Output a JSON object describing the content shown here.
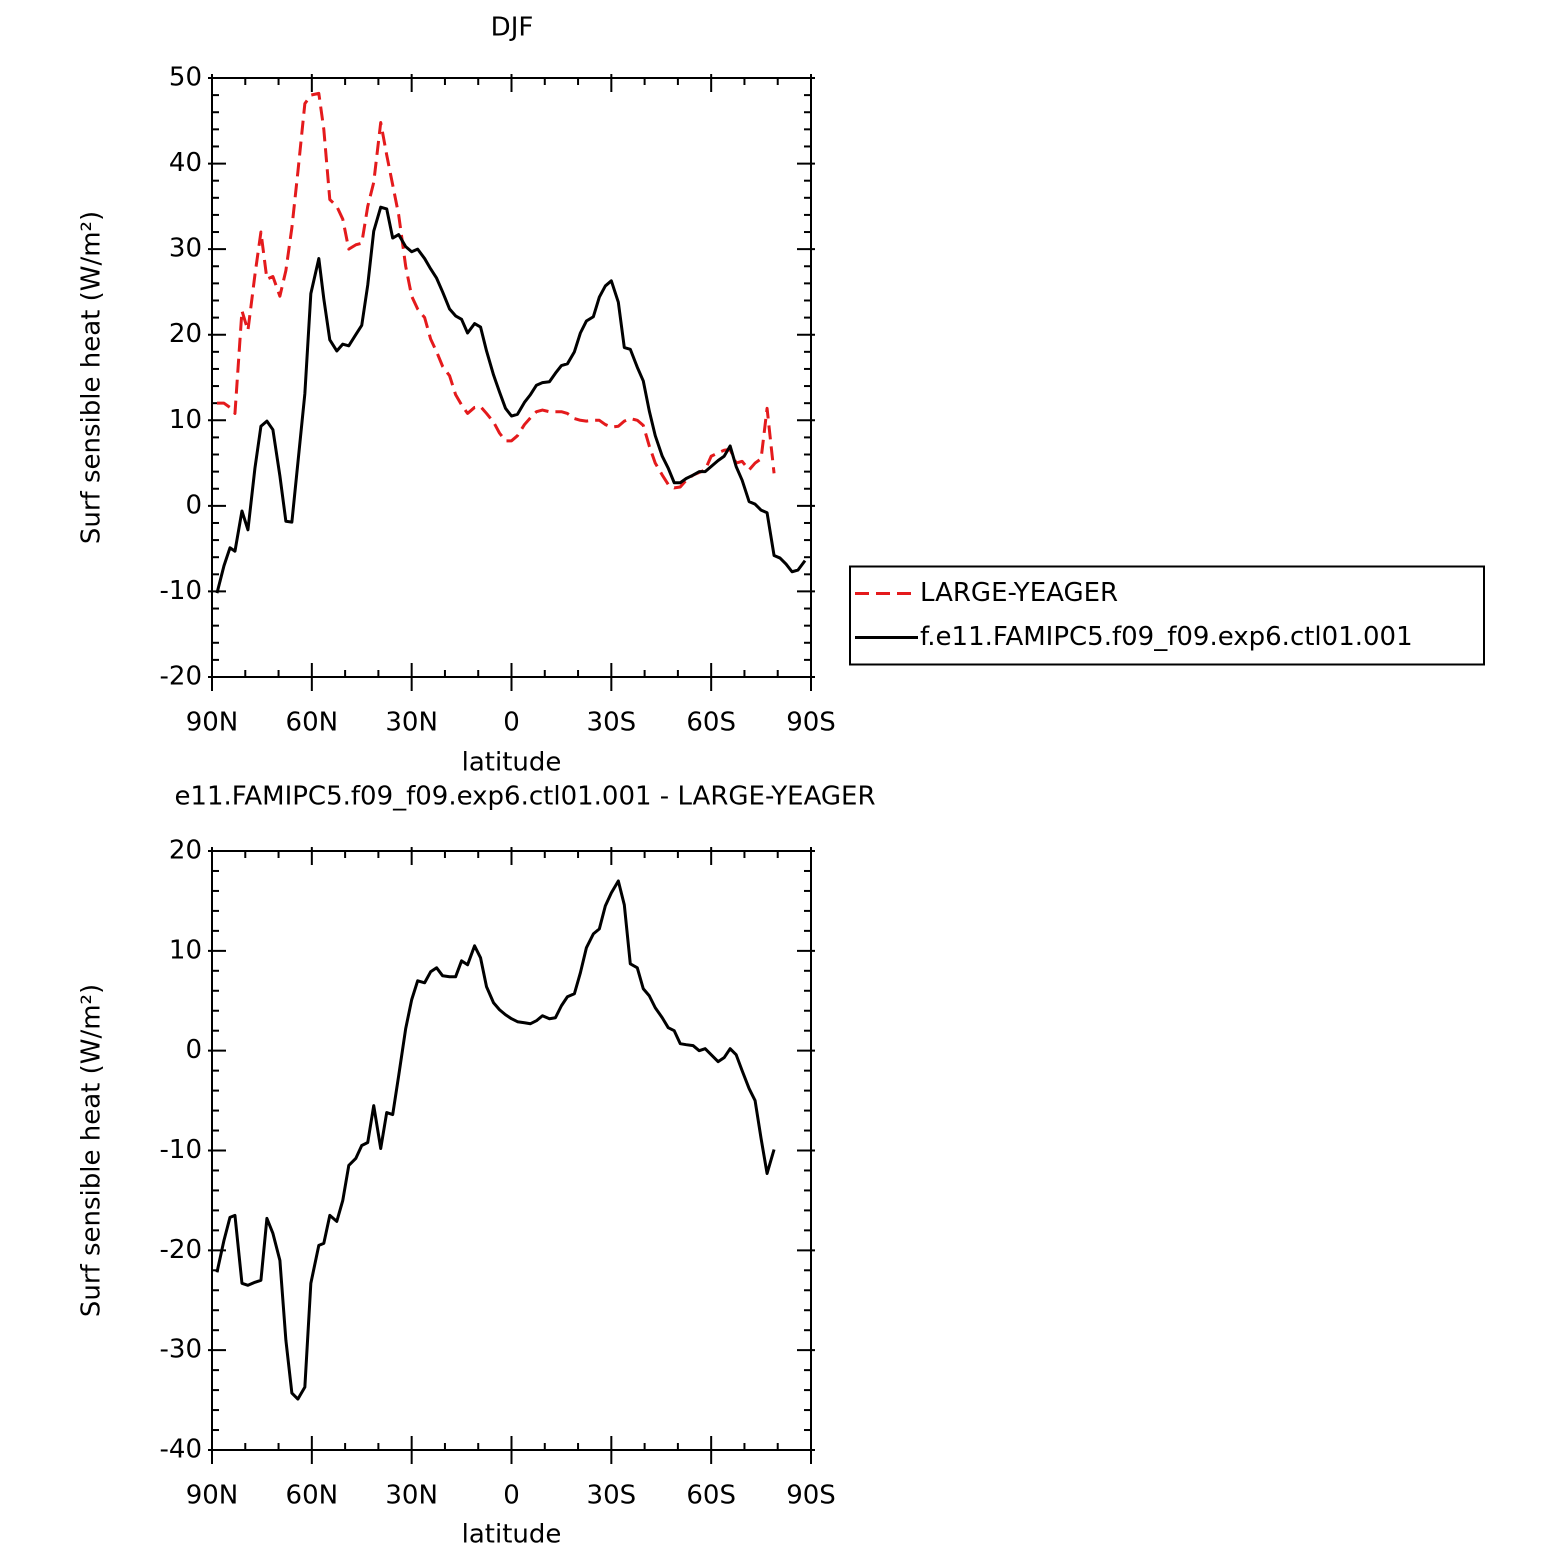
{
  "chart_data": [
    {
      "type": "line",
      "title": "DJF",
      "xlabel": "latitude",
      "ylabel": "Surf sensible heat (W/m²)",
      "xlim": [
        90,
        -90
      ],
      "xticks": [
        {
          "value": 90,
          "label": "90N"
        },
        {
          "value": 60,
          "label": "60N"
        },
        {
          "value": 30,
          "label": "30N"
        },
        0,
        {
          "value": -30,
          "label": "30S"
        },
        {
          "value": -60,
          "label": "60S"
        },
        {
          "value": -90,
          "label": "90S"
        }
      ],
      "ylim": [
        -20,
        50
      ],
      "yticks": [
        -20,
        -10,
        0,
        10,
        20,
        30,
        40,
        50
      ],
      "legend": "right",
      "x": [
        88.5,
        86.4,
        84.6,
        83.1,
        81,
        79.2,
        77.1,
        75.3,
        73.5,
        71.7,
        69.6,
        67.8,
        66,
        64.2,
        62.1,
        60.3,
        57.9,
        56.4,
        54.6,
        52.5,
        50.7,
        48.9,
        46.8,
        45,
        43.2,
        41.4,
        39.3,
        37.5,
        35.7,
        33.9,
        31.8,
        30,
        28.2,
        26.1,
        24.3,
        22.5,
        20.7,
        18.6,
        16.8,
        15,
        13.2,
        11.1,
        9.3,
        7.5,
        5.4,
        3.6,
        1.8,
        0,
        -1.8,
        -3.9,
        -5.7,
        -7.5,
        -9.3,
        -11.4,
        -13.2,
        -15,
        -16.8,
        -18.9,
        -20.7,
        -22.5,
        -24.6,
        -26.4,
        -28.2,
        -30,
        -32.1,
        -33.9,
        -35.7,
        -37.8,
        -39.6,
        -41.4,
        -43.2,
        -45.3,
        -47.1,
        -48.9,
        -50.7,
        -52.5,
        -54.6,
        -56.4,
        -58.2,
        -60,
        -62.1,
        -63.9,
        -65.7,
        -67.5,
        -69.3,
        -71.4,
        -73.2,
        -75,
        -76.8,
        -78.9,
        -80.7,
        -82.5,
        -84.3,
        -86.1,
        -88.2
      ],
      "series": [
        {
          "name": "LARGE-YEAGER",
          "color": "#e41a1c",
          "dashed": true,
          "values": [
            12,
            12,
            11.5,
            10.8,
            22.8,
            20.5,
            27,
            32,
            26.5,
            26.8,
            24.5,
            27.5,
            32.5,
            39,
            47,
            48,
            48.2,
            44,
            35.8,
            35,
            33.5,
            30,
            30.5,
            30.7,
            35,
            37.8,
            44.8,
            41,
            37.5,
            34,
            28,
            24.5,
            23,
            22,
            19.5,
            18,
            16.3,
            15.2,
            13,
            11.8,
            10.8,
            11.5,
            11.6,
            10.8,
            9.8,
            8.5,
            7.6,
            7.6,
            8.2,
            9.5,
            10.3,
            11,
            11.2,
            11,
            11,
            11,
            10.8,
            10.2,
            10,
            9.9,
            10,
            10,
            9.5,
            9.2,
            9.3,
            9.9,
            10.2,
            10,
            9.4,
            7,
            5,
            3.6,
            2.5,
            2.1,
            2.2,
            3,
            3.6,
            3.9,
            4.2,
            5.8,
            6.2,
            6.5,
            6.6,
            5,
            5.2,
            4.2,
            5,
            5.5,
            11.4,
            3.8,
            null,
            null,
            null,
            null,
            null
          ]
        },
        {
          "name": "f.e11.FAMIPC5.f09_f09.exp6.ctl01.001",
          "color": "#000000",
          "dashed": false,
          "values": [
            -10.2,
            -7,
            -4.9,
            -5.3,
            -0.6,
            -2.8,
            4.4,
            9.3,
            9.9,
            8.9,
            3.5,
            -1.8,
            -1.9,
            5,
            13.1,
            24.8,
            28.9,
            24.2,
            19.4,
            18.1,
            18.9,
            18.7,
            20,
            21.1,
            25.8,
            32.1,
            34.9,
            34.7,
            31.3,
            31.7,
            30.3,
            29.7,
            30,
            28.9,
            27.7,
            26.6,
            25,
            23,
            22.2,
            21.8,
            20.2,
            21.3,
            20.9,
            18.1,
            15.3,
            13.3,
            11.4,
            10.5,
            10.7,
            12.1,
            13,
            14.1,
            14.4,
            14.5,
            15.5,
            16.4,
            16.6,
            18,
            20.2,
            21.6,
            22.1,
            24.4,
            25.7,
            26.3,
            23.8,
            18.5,
            18.3,
            16.2,
            14.6,
            11.1,
            8.2,
            5.8,
            4.4,
            2.7,
            2.7,
            3.2,
            3.6,
            4,
            4,
            4.6,
            5.3,
            5.8,
            7,
            4.6,
            3,
            0.5,
            0.2,
            -0.5,
            -0.8,
            -5.8,
            -6.1,
            -6.8,
            -7.7,
            -7.5,
            -6.4
          ]
        }
      ]
    },
    {
      "type": "line",
      "title": "e11.FAMIPC5.f09_f09.exp6.ctl01.001 - LARGE-YEAGER",
      "xlabel": "latitude",
      "ylabel": "Surf sensible heat (W/m²)",
      "xlim": [
        90,
        -90
      ],
      "xticks": [
        {
          "value": 90,
          "label": "90N"
        },
        {
          "value": 60,
          "label": "60N"
        },
        {
          "value": 30,
          "label": "30N"
        },
        0,
        {
          "value": -30,
          "label": "30S"
        },
        {
          "value": -60,
          "label": "60S"
        },
        {
          "value": -90,
          "label": "90S"
        }
      ],
      "ylim": [
        -40,
        20
      ],
      "yticks": [
        -40,
        -30,
        -20,
        -10,
        0,
        10,
        20
      ],
      "x": [
        88.5,
        86.4,
        84.6,
        83.1,
        81,
        79.2,
        77.1,
        75.3,
        73.5,
        71.7,
        69.6,
        67.8,
        66,
        64.2,
        62.1,
        60.3,
        57.9,
        56.4,
        54.6,
        52.5,
        50.7,
        48.9,
        46.8,
        45,
        43.2,
        41.4,
        39.3,
        37.5,
        35.7,
        33.9,
        31.8,
        30,
        28.2,
        26.1,
        24.3,
        22.5,
        20.7,
        18.6,
        16.8,
        15,
        13.2,
        11.1,
        9.3,
        7.5,
        5.4,
        3.6,
        1.8,
        0,
        -1.8,
        -3.9,
        -5.7,
        -7.5,
        -9.3,
        -11.4,
        -13.2,
        -15,
        -16.8,
        -18.9,
        -20.7,
        -22.5,
        -24.6,
        -26.4,
        -28.2,
        -30,
        -32.1,
        -33.9,
        -35.7,
        -37.8,
        -39.6,
        -41.4,
        -43.2,
        -45.3,
        -47.1,
        -48.9,
        -50.7,
        -52.5,
        -54.6,
        -56.4,
        -58.2,
        -60,
        -62.1,
        -63.9,
        -65.7,
        -67.5,
        -69.3,
        -71.4,
        -73.2,
        -75,
        -76.8,
        -78.9,
        -80.7,
        -82.5,
        -84.3,
        -86.1,
        -88.2
      ],
      "series": [
        {
          "color": "#000000",
          "dashed": false,
          "values": [
            -22.2,
            -19,
            -16.7,
            -16.5,
            -23.3,
            -23.5,
            -23.2,
            -23,
            -16.8,
            -18.3,
            -21,
            -29,
            -34.3,
            -34.9,
            -33.7,
            -23.3,
            -19.5,
            -19.3,
            -16.5,
            -17.1,
            -15,
            -11.5,
            -10.8,
            -9.5,
            -9.2,
            -5.5,
            -9.8,
            -6.2,
            -6.4,
            -2.5,
            2.2,
            5.1,
            7,
            6.8,
            7.9,
            8.3,
            7.5,
            7.4,
            7.4,
            9,
            8.6,
            10.5,
            9.3,
            6.4,
            4.8,
            4.1,
            3.6,
            3.2,
            2.9,
            2.8,
            2.7,
            3,
            3.5,
            3.2,
            3.3,
            4.5,
            5.4,
            5.7,
            7.8,
            10.3,
            11.7,
            12.2,
            14.5,
            15.8,
            17,
            14.6,
            8.7,
            8.3,
            6.2,
            5.5,
            4.3,
            3.3,
            2.3,
            2,
            0.7,
            0.6,
            0.5,
            0,
            0.2,
            -0.4,
            -1.1,
            -0.7,
            0.2,
            -0.4,
            -2,
            -3.8,
            -5,
            -8.8,
            -12.3,
            -9.9,
            null,
            null,
            null,
            null,
            null
          ]
        }
      ]
    }
  ]
}
